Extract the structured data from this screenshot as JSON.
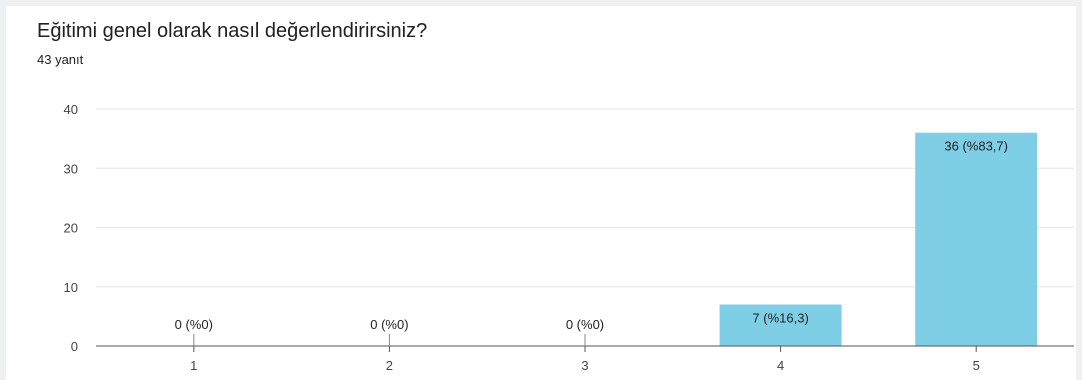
{
  "question": {
    "title": "Eğitimi genel olarak nasıl değerlendirirsiniz?",
    "response_count": "43 yanıt"
  },
  "colors": {
    "bar": "#7ecfe6",
    "gridline": "#e6e6e6",
    "axis": "#555555"
  },
  "chart_data": {
    "type": "bar",
    "title": "Eğitimi genel olarak nasıl değerlendirirsiniz?",
    "xlabel": "",
    "ylabel": "",
    "categories": [
      "1",
      "2",
      "3",
      "4",
      "5"
    ],
    "values": [
      0,
      0,
      0,
      7,
      36
    ],
    "data_labels": [
      "0 (%0)",
      "0 (%0)",
      "0 (%0)",
      "7 (%16,3)",
      "36 (%83,7)"
    ],
    "ylim": [
      0,
      40
    ],
    "yticks": [
      "0",
      "10",
      "20",
      "30",
      "40"
    ],
    "grid": true,
    "legend": "none"
  }
}
